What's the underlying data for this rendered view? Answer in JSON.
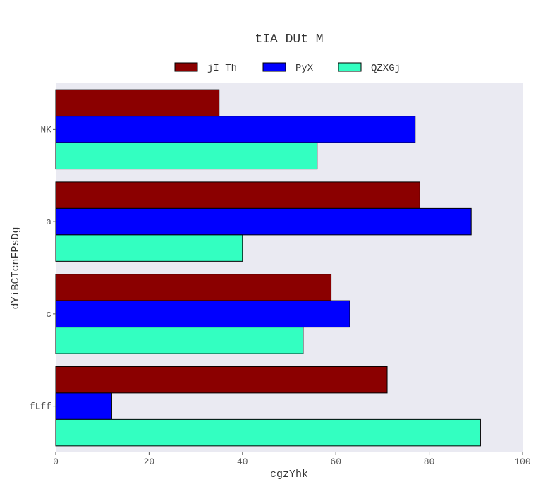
{
  "chart_data": {
    "type": "bar",
    "orientation": "horizontal",
    "title": "tIA  DUt M",
    "xlabel": "cgzYhk",
    "ylabel": "dYiBCTcnFPsDg",
    "categories": [
      "NK",
      "a",
      "c",
      "fLff"
    ],
    "series": [
      {
        "name": "jI Th",
        "color": "#8b0000",
        "values": [
          35,
          78,
          59,
          71
        ]
      },
      {
        "name": "PyX",
        "color": "#0000ff",
        "values": [
          77,
          89,
          63,
          12
        ]
      },
      {
        "name": "QZXGj",
        "color": "#33ffc1",
        "values": [
          56,
          40,
          53,
          91
        ]
      }
    ],
    "xlim": [
      0,
      100
    ],
    "xticks": [
      0,
      20,
      40,
      60,
      80,
      100
    ],
    "grid": false,
    "legend_position": "top-center",
    "plot_background": "#eaeaf2"
  }
}
